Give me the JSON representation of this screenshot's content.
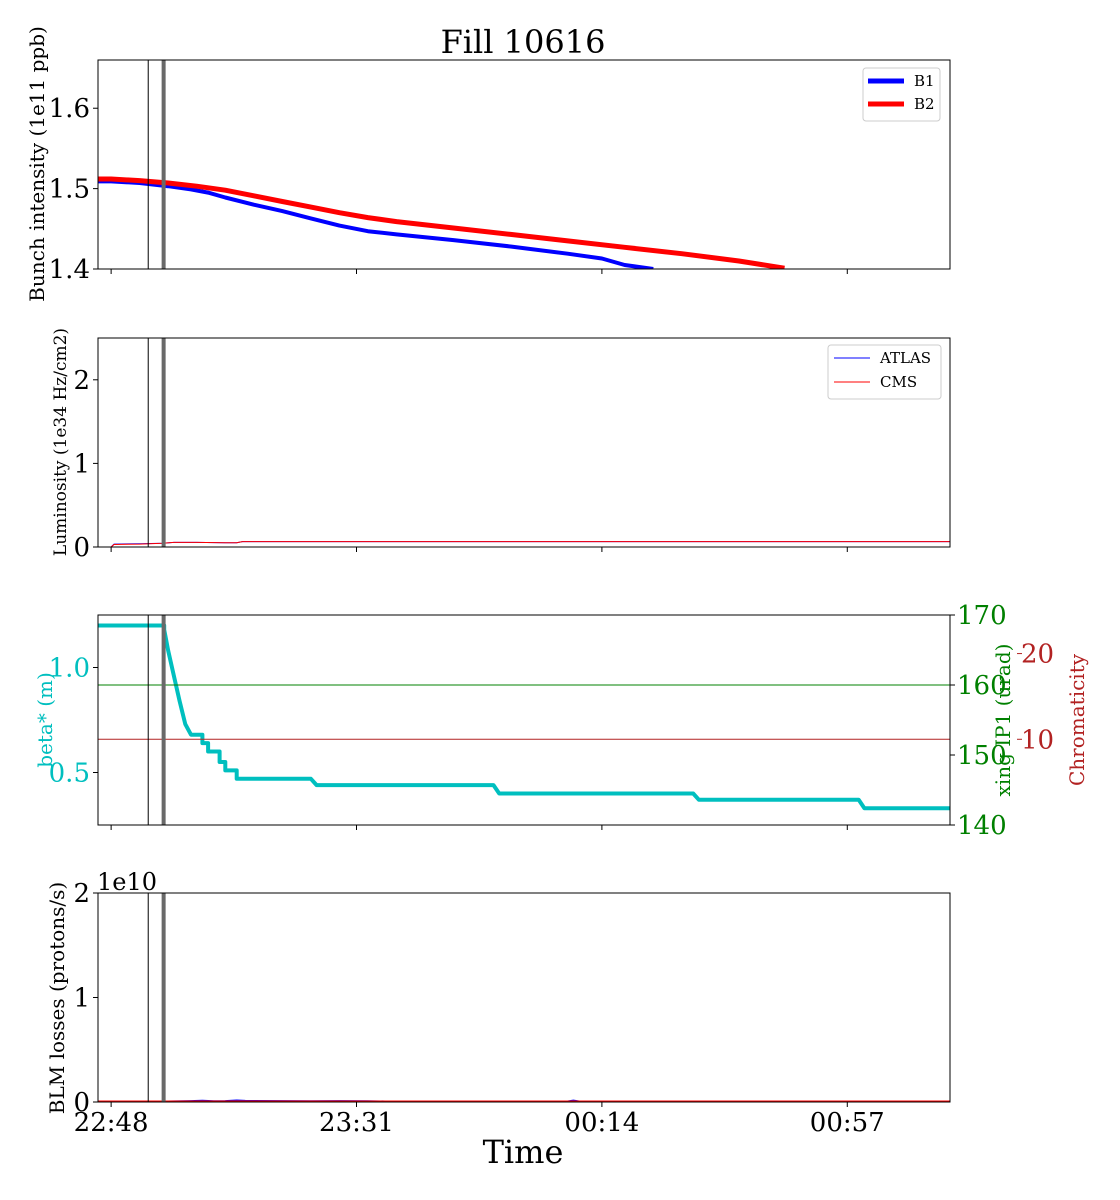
{
  "title": "Fill 10616",
  "xlabel": "Time",
  "x_ticks": [
    "22:48",
    "23:31",
    "00:14",
    "00:57"
  ],
  "x_tick_minutes": [
    0,
    43,
    86,
    129
  ],
  "x_range_minutes": [
    -2.3,
    147
  ],
  "markers_minutes": {
    "thin": 6.5,
    "thick": 9.2
  },
  "colors": {
    "b1": "#0000ff",
    "b2": "#ff0000",
    "beta": "#00bfbf",
    "xing": "#008000",
    "chroma": "#b22222",
    "marker": "#696969"
  },
  "chart_data": [
    {
      "type": "line",
      "id": "intensity",
      "ylabel": "Bunch intensity (1e11 ppb)",
      "ylim": [
        1.4,
        1.66
      ],
      "yticks": [
        "1.4",
        "1.5",
        "1.6"
      ],
      "legend_position": "top-right",
      "series": [
        {
          "name": "B1",
          "color": "#0000ff",
          "width": 4,
          "x": [
            -2.3,
            0,
            5,
            10,
            14,
            17,
            20,
            25,
            30,
            35,
            40,
            45,
            50,
            60,
            70,
            80,
            86,
            90,
            95
          ],
          "y": [
            1.509,
            1.509,
            1.507,
            1.503,
            1.499,
            1.495,
            1.489,
            1.48,
            1.472,
            1.463,
            1.454,
            1.447,
            1.443,
            1.436,
            1.428,
            1.419,
            1.413,
            1.405,
            1.4
          ]
        },
        {
          "name": "B2",
          "color": "#ff0000",
          "width": 5,
          "x": [
            -2.3,
            0,
            5,
            10,
            15,
            20,
            25,
            30,
            35,
            40,
            45,
            50,
            60,
            70,
            80,
            90,
            100,
            110,
            118
          ],
          "y": [
            1.512,
            1.512,
            1.51,
            1.507,
            1.503,
            1.498,
            1.491,
            1.484,
            1.477,
            1.47,
            1.464,
            1.459,
            1.451,
            1.443,
            1.435,
            1.427,
            1.419,
            1.41,
            1.401
          ]
        }
      ]
    },
    {
      "type": "line",
      "id": "luminosity",
      "ylabel": "Luminosity (1e34 Hz/cm2)",
      "ylim": [
        0,
        2.5
      ],
      "yticks": [
        "0",
        "1",
        "2"
      ],
      "legend_position": "top-right",
      "series": [
        {
          "name": "ATLAS",
          "color": "#0000ff",
          "width": 1,
          "x": [
            -2.3,
            0,
            0.5,
            5,
            9,
            11,
            15,
            20,
            22,
            23,
            147
          ],
          "y": [
            0.0,
            0.0,
            0.035,
            0.04,
            0.045,
            0.055,
            0.055,
            0.05,
            0.05,
            0.065,
            0.065
          ]
        },
        {
          "name": "CMS",
          "color": "#ff0000",
          "width": 1,
          "x": [
            -2.3,
            0,
            0.5,
            5,
            9,
            11,
            15,
            20,
            22,
            23,
            147
          ],
          "y": [
            0.0,
            0.0,
            0.03,
            0.035,
            0.045,
            0.055,
            0.055,
            0.05,
            0.05,
            0.065,
            0.065
          ]
        }
      ]
    },
    {
      "type": "line",
      "id": "optics",
      "ylabel": "beta* (m)",
      "ylabel_right_1": "xing IP1 (urad)",
      "ylabel_right_2": "Chromaticity",
      "ylim": [
        0.25,
        1.25
      ],
      "yticks": [
        "0.5",
        "1.0"
      ],
      "ylim_xing": [
        140,
        170
      ],
      "yticks_xing": [
        "140",
        "150",
        "160",
        "170"
      ],
      "ylim_chroma": [
        0,
        24.5
      ],
      "yticks_chroma": [
        "10",
        "20"
      ],
      "series": [
        {
          "name": "beta*",
          "color": "#00bfbf",
          "width": 4,
          "axis": "left",
          "x": [
            -2.3,
            9.3,
            9.3,
            10,
            11,
            12,
            13,
            14,
            14,
            16,
            16,
            17,
            17,
            19,
            19,
            20,
            20,
            22,
            22,
            35,
            36,
            36,
            67,
            68,
            68,
            102,
            103,
            103,
            131,
            132,
            132,
            147
          ],
          "y": [
            1.2,
            1.2,
            1.18,
            1.08,
            0.96,
            0.84,
            0.73,
            0.68,
            0.68,
            0.68,
            0.64,
            0.64,
            0.6,
            0.6,
            0.55,
            0.55,
            0.51,
            0.51,
            0.47,
            0.47,
            0.44,
            0.44,
            0.44,
            0.4,
            0.4,
            0.4,
            0.37,
            0.37,
            0.37,
            0.33,
            0.33,
            0.33
          ]
        },
        {
          "name": "xing IP1",
          "color": "#008000",
          "width": 1,
          "axis": "right1",
          "x": [
            -2.3,
            147
          ],
          "y": [
            160,
            160
          ]
        },
        {
          "name": "Chromaticity",
          "color": "#b22222",
          "width": 1,
          "axis": "right2",
          "x": [
            -2.3,
            147
          ],
          "y": [
            10,
            10
          ]
        }
      ]
    },
    {
      "type": "line",
      "id": "blm",
      "ylabel": "BLM losses (protons/s)",
      "ylim": [
        0,
        20000000000.0
      ],
      "yticks": [
        "0",
        "1",
        "2"
      ],
      "offset_text": "1e10",
      "series": [
        {
          "name": "B1",
          "color": "#0000ff",
          "width": 3,
          "x": [
            -2.3,
            10,
            14,
            16,
            18,
            20,
            22,
            23.5,
            25,
            30,
            35,
            40,
            45,
            48,
            80,
            81,
            82,
            147
          ],
          "y": [
            0,
            0,
            40000000.0,
            80000000.0,
            30000000.0,
            40000000.0,
            100000000.0,
            60000000.0,
            50000000.0,
            40000000.0,
            30000000.0,
            40000000.0,
            30000000.0,
            0,
            0,
            90000000.0,
            0,
            0
          ]
        },
        {
          "name": "B2",
          "color": "#ff0000",
          "width": 3,
          "x": [
            -2.3,
            147
          ],
          "y": [
            0,
            0
          ]
        }
      ]
    }
  ]
}
